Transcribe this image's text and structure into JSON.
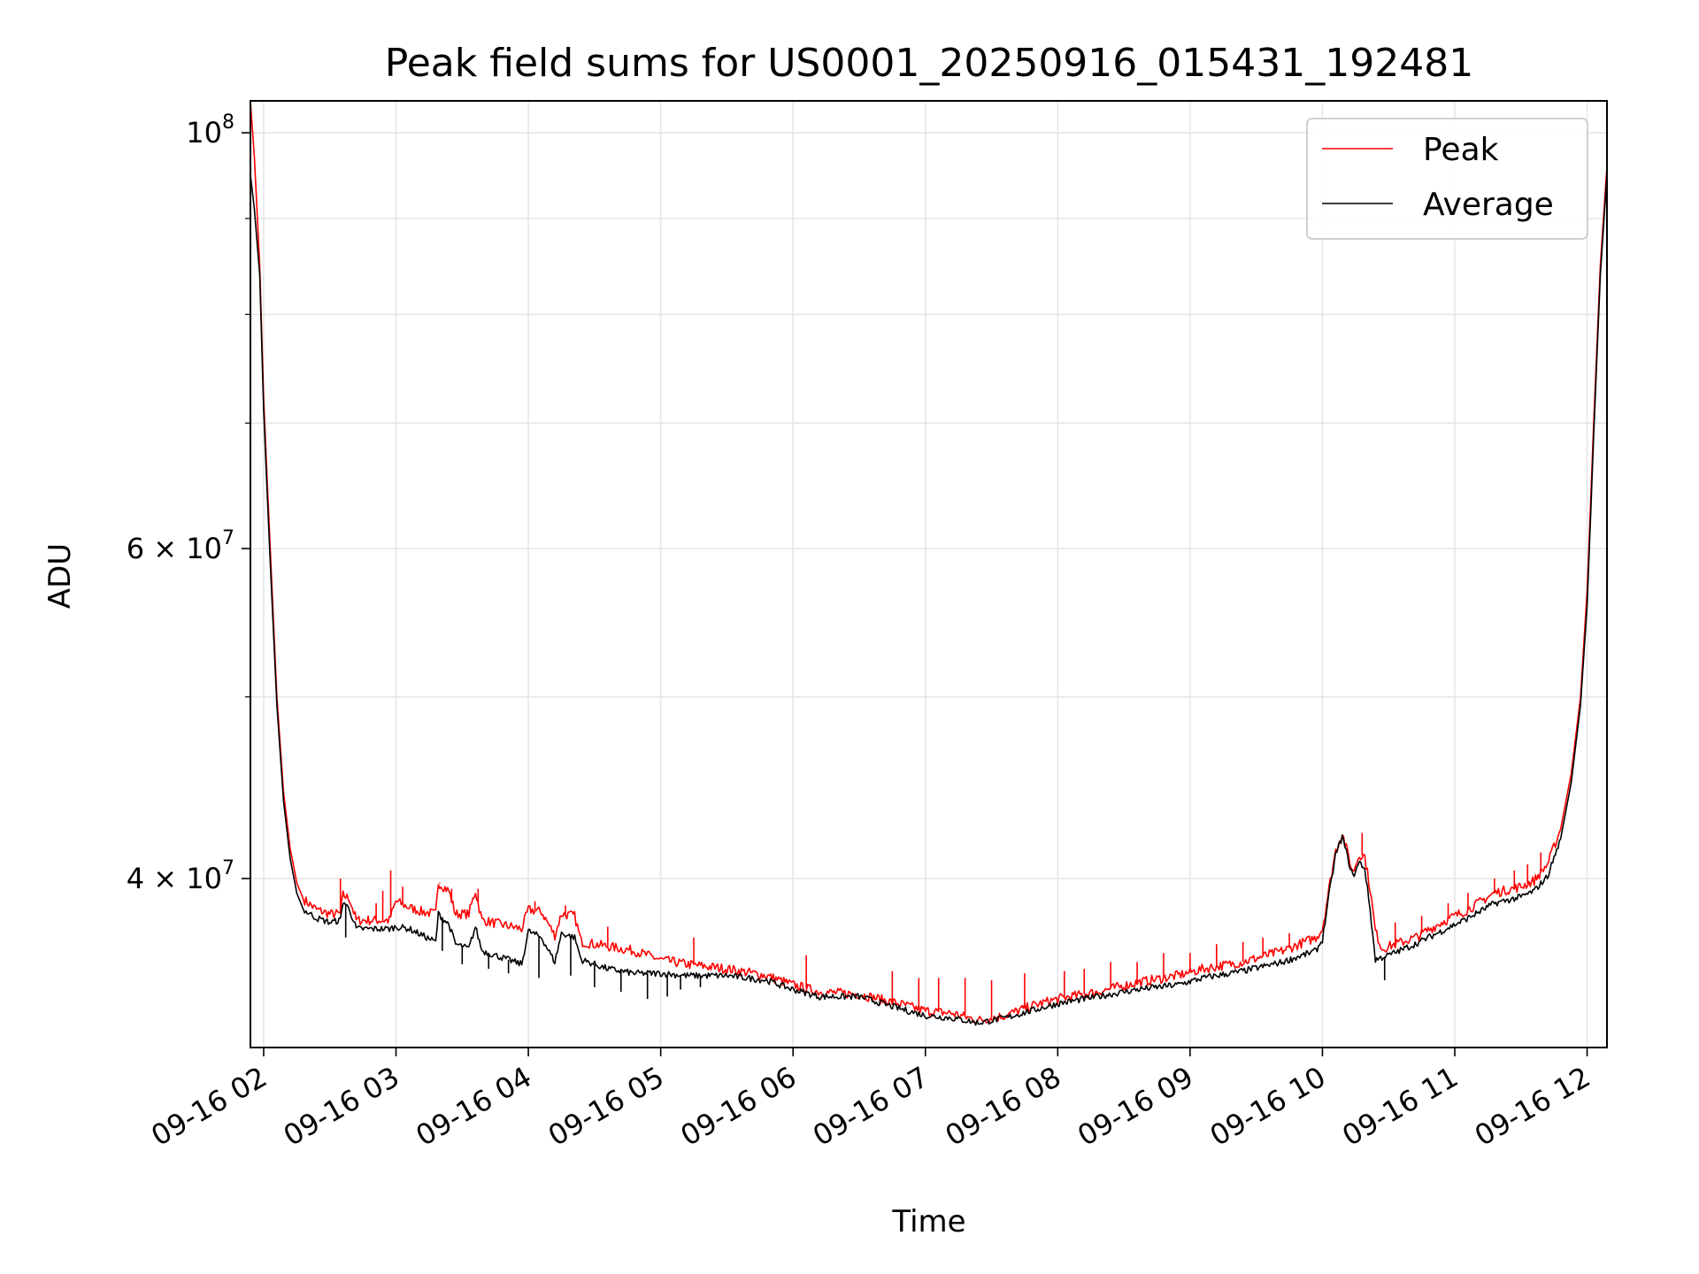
{
  "chart_data": {
    "type": "line",
    "title": "Peak field sums for US0001_20250916_015431_192481",
    "xlabel": "Time",
    "ylabel": "ADU",
    "yscale": "log",
    "ylim": [
      32500000,
      104000000
    ],
    "xlim": [
      -0.1,
      10.15
    ],
    "x_unit": "hours after 09-16 02:00",
    "grid": true,
    "legend_position": "top-right",
    "x_ticks": [
      {
        "value": 0,
        "label": "09-16 02"
      },
      {
        "value": 1,
        "label": "09-16 03"
      },
      {
        "value": 2,
        "label": "09-16 04"
      },
      {
        "value": 3,
        "label": "09-16 05"
      },
      {
        "value": 4,
        "label": "09-16 06"
      },
      {
        "value": 5,
        "label": "09-16 07"
      },
      {
        "value": 6,
        "label": "09-16 08"
      },
      {
        "value": 7,
        "label": "09-16 09"
      },
      {
        "value": 8,
        "label": "09-16 10"
      },
      {
        "value": 9,
        "label": "09-16 11"
      },
      {
        "value": 10,
        "label": "09-16 12"
      }
    ],
    "y_major_ticks": [
      {
        "value": 100000000,
        "base": "10",
        "exp": "8",
        "coef": ""
      },
      {
        "value": 60000000,
        "base": "10",
        "exp": "7",
        "coef": "6 × "
      },
      {
        "value": 40000000,
        "base": "10",
        "exp": "7",
        "coef": "4 × "
      }
    ],
    "y_minor_ticks": [
      50000000,
      70000000,
      80000000,
      90000000
    ],
    "series": [
      {
        "name": "Peak",
        "color": "#ff0000",
        "points": [
          [
            -0.1,
            104000000
          ],
          [
            -0.07,
            97000000
          ],
          [
            -0.03,
            85000000
          ],
          [
            0.0,
            72000000
          ],
          [
            0.05,
            60000000
          ],
          [
            0.1,
            50000000
          ],
          [
            0.15,
            44500000
          ],
          [
            0.2,
            41500000
          ],
          [
            0.25,
            39800000
          ],
          [
            0.3,
            39000000
          ],
          [
            0.4,
            38500000
          ],
          [
            0.5,
            38300000
          ],
          [
            0.58,
            38300000
          ],
          [
            0.6,
            39200000
          ],
          [
            0.65,
            39000000
          ],
          [
            0.7,
            38000000
          ],
          [
            0.8,
            38000000
          ],
          [
            0.95,
            38000000
          ],
          [
            1.0,
            38900000
          ],
          [
            1.1,
            38600000
          ],
          [
            1.2,
            38400000
          ],
          [
            1.3,
            38300000
          ],
          [
            1.32,
            39800000
          ],
          [
            1.4,
            39400000
          ],
          [
            1.45,
            38300000
          ],
          [
            1.55,
            38300000
          ],
          [
            1.6,
            39400000
          ],
          [
            1.65,
            38000000
          ],
          [
            1.8,
            37800000
          ],
          [
            1.95,
            37600000
          ],
          [
            2.0,
            38500000
          ],
          [
            2.1,
            38400000
          ],
          [
            2.2,
            37300000
          ],
          [
            2.25,
            38300000
          ],
          [
            2.35,
            38200000
          ],
          [
            2.4,
            37000000
          ],
          [
            2.6,
            36800000
          ],
          [
            2.8,
            36600000
          ],
          [
            3.0,
            36200000
          ],
          [
            3.2,
            36000000
          ],
          [
            3.5,
            35800000
          ],
          [
            3.8,
            35500000
          ],
          [
            4.0,
            35100000
          ],
          [
            4.2,
            34800000
          ],
          [
            4.5,
            34700000
          ],
          [
            4.8,
            34300000
          ],
          [
            5.0,
            34000000
          ],
          [
            5.2,
            33900000
          ],
          [
            5.4,
            33600000
          ],
          [
            5.6,
            33800000
          ],
          [
            5.8,
            34200000
          ],
          [
            6.0,
            34500000
          ],
          [
            6.3,
            34800000
          ],
          [
            6.6,
            35200000
          ],
          [
            6.9,
            35500000
          ],
          [
            7.1,
            35800000
          ],
          [
            7.4,
            36100000
          ],
          [
            7.7,
            36600000
          ],
          [
            7.95,
            37200000
          ],
          [
            8.0,
            37600000
          ],
          [
            8.05,
            39500000
          ],
          [
            8.1,
            41400000
          ],
          [
            8.15,
            42300000
          ],
          [
            8.2,
            41000000
          ],
          [
            8.23,
            40300000
          ],
          [
            8.28,
            41200000
          ],
          [
            8.32,
            41100000
          ],
          [
            8.36,
            39500000
          ],
          [
            8.4,
            37500000
          ],
          [
            8.45,
            36700000
          ],
          [
            8.5,
            36800000
          ],
          [
            8.7,
            37200000
          ],
          [
            8.9,
            37900000
          ],
          [
            9.1,
            38500000
          ],
          [
            9.3,
            39300000
          ],
          [
            9.5,
            39600000
          ],
          [
            9.6,
            39900000
          ],
          [
            9.7,
            40700000
          ],
          [
            9.8,
            42500000
          ],
          [
            9.88,
            45500000
          ],
          [
            9.95,
            50000000
          ],
          [
            10.0,
            57000000
          ],
          [
            10.05,
            70000000
          ],
          [
            10.1,
            85000000
          ],
          [
            10.15,
            96000000
          ]
        ],
        "spikes": [
          [
            0.58,
            40000000
          ],
          [
            0.85,
            38800000
          ],
          [
            0.9,
            39400000
          ],
          [
            0.96,
            40400000
          ],
          [
            1.05,
            39600000
          ],
          [
            1.33,
            39800000
          ],
          [
            1.42,
            39500000
          ],
          [
            1.62,
            39500000
          ],
          [
            2.05,
            38900000
          ],
          [
            2.28,
            38700000
          ],
          [
            2.6,
            37700000
          ],
          [
            3.25,
            37200000
          ],
          [
            4.1,
            36400000
          ],
          [
            4.75,
            35700000
          ],
          [
            4.95,
            35400000
          ],
          [
            5.1,
            35400000
          ],
          [
            5.3,
            35400000
          ],
          [
            5.5,
            35300000
          ],
          [
            5.75,
            35600000
          ],
          [
            6.05,
            35700000
          ],
          [
            6.2,
            35800000
          ],
          [
            6.4,
            36100000
          ],
          [
            6.6,
            36100000
          ],
          [
            6.8,
            36500000
          ],
          [
            7.0,
            36500000
          ],
          [
            7.2,
            36900000
          ],
          [
            7.4,
            37000000
          ],
          [
            7.55,
            37200000
          ],
          [
            7.75,
            37400000
          ],
          [
            8.3,
            42300000
          ],
          [
            8.55,
            37900000
          ],
          [
            8.75,
            38200000
          ],
          [
            8.95,
            38800000
          ],
          [
            9.1,
            39300000
          ],
          [
            9.3,
            40000000
          ],
          [
            9.45,
            40400000
          ],
          [
            9.55,
            40700000
          ],
          [
            9.65,
            41300000
          ]
        ]
      },
      {
        "name": "Average",
        "color": "#000000",
        "points": [
          [
            -0.1,
            95000000
          ],
          [
            -0.07,
            91000000
          ],
          [
            -0.03,
            84000000
          ],
          [
            0.0,
            71000000
          ],
          [
            0.05,
            59000000
          ],
          [
            0.1,
            49500000
          ],
          [
            0.15,
            44000000
          ],
          [
            0.2,
            41000000
          ],
          [
            0.25,
            39300000
          ],
          [
            0.3,
            38500000
          ],
          [
            0.4,
            38100000
          ],
          [
            0.5,
            37900000
          ],
          [
            0.58,
            38000000
          ],
          [
            0.6,
            38900000
          ],
          [
            0.65,
            38500000
          ],
          [
            0.7,
            37600000
          ],
          [
            0.8,
            37600000
          ],
          [
            0.95,
            37600000
          ],
          [
            1.0,
            37700000
          ],
          [
            1.1,
            37600000
          ],
          [
            1.2,
            37300000
          ],
          [
            1.3,
            37000000
          ],
          [
            1.32,
            38300000
          ],
          [
            1.4,
            37800000
          ],
          [
            1.45,
            36900000
          ],
          [
            1.55,
            36700000
          ],
          [
            1.6,
            37700000
          ],
          [
            1.65,
            36600000
          ],
          [
            1.8,
            36300000
          ],
          [
            1.95,
            36000000
          ],
          [
            2.0,
            37500000
          ],
          [
            2.1,
            37200000
          ],
          [
            2.2,
            36100000
          ],
          [
            2.25,
            37400000
          ],
          [
            2.35,
            37200000
          ],
          [
            2.4,
            36200000
          ],
          [
            2.6,
            35800000
          ],
          [
            2.8,
            35600000
          ],
          [
            3.0,
            35600000
          ],
          [
            3.2,
            35500000
          ],
          [
            3.5,
            35500000
          ],
          [
            3.8,
            35300000
          ],
          [
            4.0,
            34900000
          ],
          [
            4.2,
            34600000
          ],
          [
            4.5,
            34600000
          ],
          [
            4.8,
            34100000
          ],
          [
            5.0,
            33800000
          ],
          [
            5.2,
            33700000
          ],
          [
            5.4,
            33500000
          ],
          [
            5.6,
            33700000
          ],
          [
            5.8,
            34000000
          ],
          [
            6.0,
            34300000
          ],
          [
            6.3,
            34600000
          ],
          [
            6.6,
            34900000
          ],
          [
            6.9,
            35100000
          ],
          [
            7.1,
            35400000
          ],
          [
            7.4,
            35700000
          ],
          [
            7.7,
            36100000
          ],
          [
            7.95,
            36600000
          ],
          [
            8.0,
            37100000
          ],
          [
            8.05,
            39200000
          ],
          [
            8.1,
            41200000
          ],
          [
            8.15,
            42100000
          ],
          [
            8.2,
            40800000
          ],
          [
            8.23,
            40100000
          ],
          [
            8.28,
            40800000
          ],
          [
            8.32,
            40500000
          ],
          [
            8.36,
            38500000
          ],
          [
            8.4,
            36200000
          ],
          [
            8.45,
            36300000
          ],
          [
            8.5,
            36400000
          ],
          [
            8.7,
            36900000
          ],
          [
            8.9,
            37500000
          ],
          [
            9.1,
            38100000
          ],
          [
            9.3,
            38800000
          ],
          [
            9.5,
            39100000
          ],
          [
            9.6,
            39400000
          ],
          [
            9.7,
            40100000
          ],
          [
            9.8,
            42000000
          ],
          [
            9.88,
            45000000
          ],
          [
            9.95,
            49500000
          ],
          [
            10.0,
            56000000
          ],
          [
            10.05,
            69000000
          ],
          [
            10.1,
            84000000
          ],
          [
            10.15,
            95000000
          ]
        ],
        "spikes": [
          [
            0.62,
            37200000
          ],
          [
            1.35,
            36600000
          ],
          [
            1.5,
            36000000
          ],
          [
            1.7,
            35800000
          ],
          [
            1.85,
            35600000
          ],
          [
            2.08,
            35400000
          ],
          [
            2.32,
            35500000
          ],
          [
            2.5,
            35000000
          ],
          [
            2.7,
            34800000
          ],
          [
            2.9,
            34500000
          ],
          [
            3.05,
            34600000
          ],
          [
            3.15,
            34900000
          ],
          [
            3.3,
            35000000
          ],
          [
            8.47,
            35300000
          ]
        ]
      }
    ]
  }
}
